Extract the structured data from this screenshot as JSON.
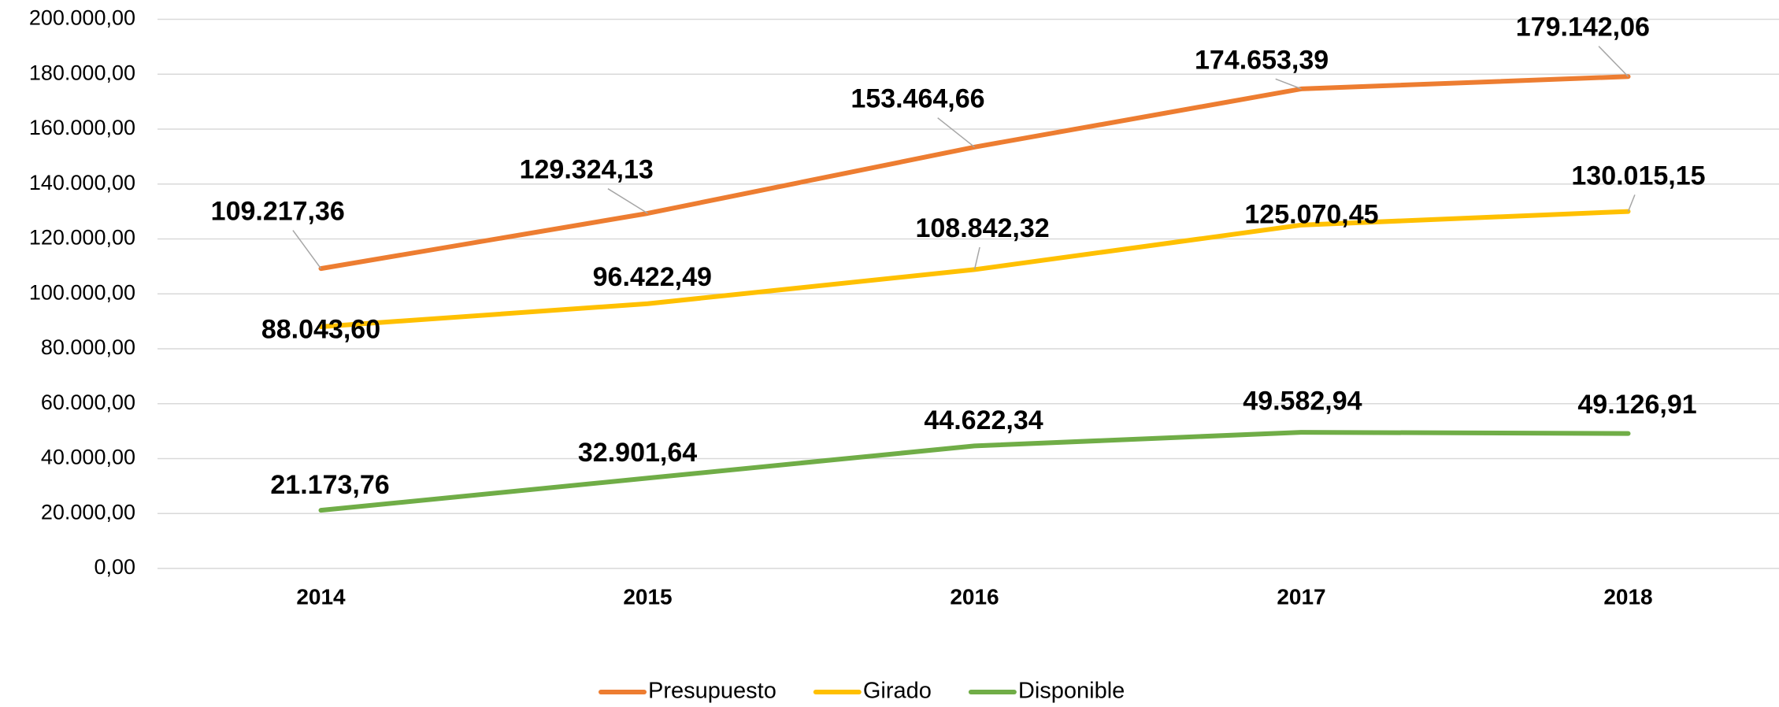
{
  "chart_data": {
    "type": "line",
    "categories": [
      "2014",
      "2015",
      "2016",
      "2017",
      "2018"
    ],
    "series": [
      {
        "name": "Presupuesto",
        "color": "#ed7d31",
        "values": [
          109217.36,
          129324.13,
          153464.66,
          174653.39,
          179142.06
        ],
        "value_labels": [
          "109.217,36",
          "129.324,13",
          "153.464,66",
          "174.653,39",
          "179.142,06"
        ]
      },
      {
        "name": "Girado",
        "color": "#ffc000",
        "values": [
          88043.6,
          96422.49,
          108842.32,
          125070.45,
          130015.15
        ],
        "value_labels": [
          "88.043,60",
          "96.422,49",
          "108.842,32",
          "125.070,45",
          "130.015,15"
        ]
      },
      {
        "name": "Disponible",
        "color": "#70ad47",
        "values": [
          21173.76,
          32901.64,
          44622.34,
          49582.94,
          49126.91
        ],
        "value_labels": [
          "21.173,76",
          "32.901,64",
          "44.622,34",
          "49.582,94",
          "49.126,91"
        ]
      }
    ],
    "ylim": [
      0,
      200000
    ],
    "yticks": [
      {
        "value": 0,
        "label": "0,00"
      },
      {
        "value": 20000,
        "label": "20.000,00"
      },
      {
        "value": 40000,
        "label": "40.000,00"
      },
      {
        "value": 60000,
        "label": "60.000,00"
      },
      {
        "value": 80000,
        "label": "80.000,00"
      },
      {
        "value": 100000,
        "label": "100.000,00"
      },
      {
        "value": 120000,
        "label": "120.000,00"
      },
      {
        "value": 140000,
        "label": "140.000,00"
      },
      {
        "value": 160000,
        "label": "160.000,00"
      },
      {
        "value": 180000,
        "label": "180.000,00"
      },
      {
        "value": 200000,
        "label": "200.000,00"
      }
    ],
    "grid": true,
    "legend": "bottom"
  }
}
